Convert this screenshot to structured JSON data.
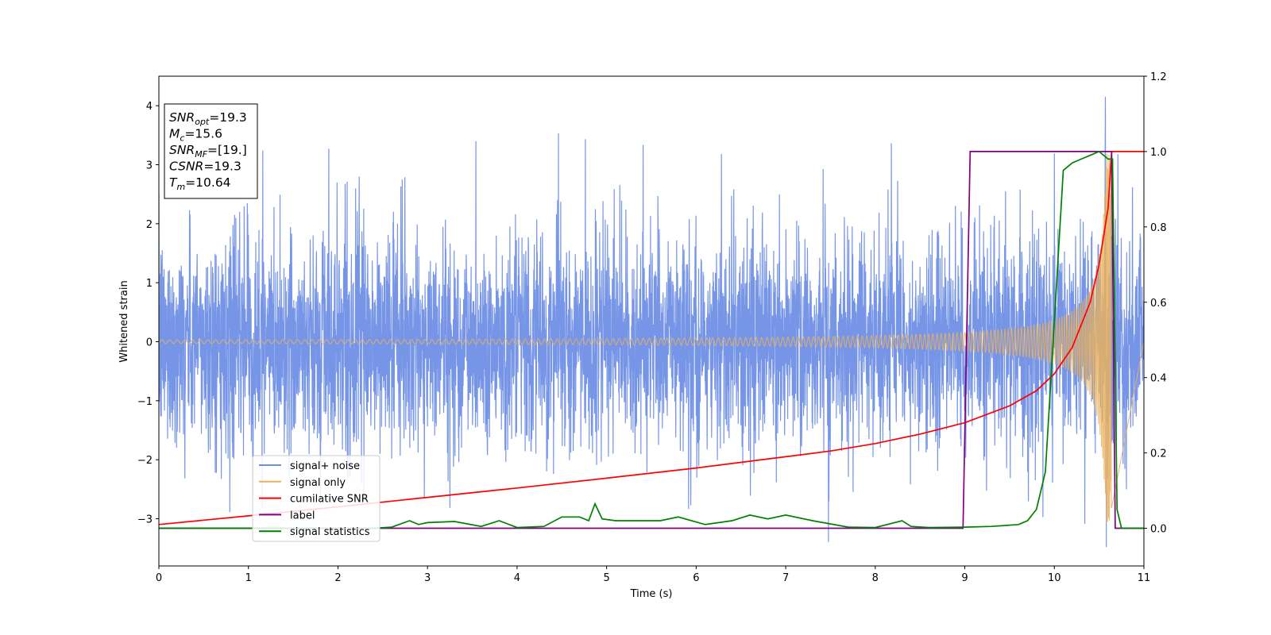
{
  "chart_data": {
    "type": "line",
    "xlabel": "Time (s)",
    "ylabel": "Whitened strain",
    "xlim": [
      0,
      11
    ],
    "ylim": [
      -3.8,
      4.5
    ],
    "y2lim": [
      -0.1,
      1.2
    ],
    "x_ticks": [
      "0",
      "1",
      "2",
      "3",
      "4",
      "5",
      "6",
      "7",
      "8",
      "9",
      "10",
      "11"
    ],
    "y_ticks": [
      "−3",
      "−2",
      "−1",
      "0",
      "1",
      "2",
      "3",
      "4"
    ],
    "y2_ticks": [
      "0.0",
      "0.2",
      "0.4",
      "0.6",
      "0.8",
      "1.0",
      "1.2"
    ],
    "grid": false,
    "legend_position": "lower-left",
    "info_box": [
      {
        "base": "SNR",
        "sub": "opt",
        "value": "=19.3"
      },
      {
        "base": "M",
        "sub": "c",
        "value": "=15.6"
      },
      {
        "base": "SNR",
        "sub": "MF",
        "value": "=[19.]"
      },
      {
        "base": "CSNR",
        "sub": "",
        "value": "=19.3"
      },
      {
        "base": "T",
        "sub": "m",
        "value": "=10.64"
      }
    ],
    "series": [
      {
        "name": "signal+ noise",
        "axis": "left",
        "color": "#6f8fe6",
        "kind": "noisy-band",
        "x_range": [
          0,
          11
        ],
        "std": 0.9,
        "peak_max": 4.15,
        "peak_min": -3.48
      },
      {
        "name": "signal only",
        "axis": "left",
        "color": "#e8b060",
        "kind": "chirp",
        "amplitude_start": 0.03,
        "amplitude_peak": 3.2,
        "merger_time": 10.64
      },
      {
        "name": "cumilative SNR",
        "axis": "right",
        "color": "#ff0000",
        "x": [
          0,
          1,
          2,
          3,
          4,
          5,
          6,
          7,
          7.5,
          8,
          8.5,
          9,
          9.5,
          9.8,
          10,
          10.2,
          10.4,
          10.5,
          10.6,
          10.64,
          11
        ],
        "y": [
          0.01,
          0.033,
          0.057,
          0.082,
          0.107,
          0.133,
          0.16,
          0.19,
          0.205,
          0.225,
          0.25,
          0.28,
          0.325,
          0.365,
          0.41,
          0.48,
          0.6,
          0.7,
          0.85,
          1.0,
          1.0
        ]
      },
      {
        "name": "label",
        "axis": "right",
        "color": "#800080",
        "x": [
          0,
          8.98,
          9.06,
          10.64,
          10.68,
          11
        ],
        "y": [
          0,
          0,
          1,
          1,
          0,
          0
        ]
      },
      {
        "name": "signal statistics",
        "axis": "right",
        "color": "#008000",
        "x": [
          0,
          2.4,
          2.6,
          2.8,
          2.9,
          3.0,
          3.3,
          3.6,
          3.8,
          4.0,
          4.3,
          4.5,
          4.7,
          4.8,
          4.87,
          4.95,
          5.1,
          5.3,
          5.6,
          5.8,
          6.1,
          6.4,
          6.6,
          6.8,
          7.0,
          7.3,
          7.7,
          8.0,
          8.3,
          8.4,
          8.6,
          9.0,
          9.3,
          9.6,
          9.7,
          9.8,
          9.9,
          10.0,
          10.1,
          10.2,
          10.3,
          10.4,
          10.5,
          10.6,
          10.65,
          10.7,
          10.75,
          11
        ],
        "y": [
          0,
          0,
          0.003,
          0.02,
          0.01,
          0.015,
          0.018,
          0.005,
          0.02,
          0.002,
          0.005,
          0.03,
          0.03,
          0.02,
          0.065,
          0.025,
          0.02,
          0.02,
          0.02,
          0.03,
          0.01,
          0.02,
          0.035,
          0.025,
          0.035,
          0.02,
          0.003,
          0.002,
          0.02,
          0.005,
          0.002,
          0.003,
          0.005,
          0.01,
          0.02,
          0.05,
          0.15,
          0.55,
          0.95,
          0.97,
          0.98,
          0.99,
          1.0,
          0.98,
          0.98,
          0.05,
          0.0,
          0.0
        ]
      }
    ]
  }
}
